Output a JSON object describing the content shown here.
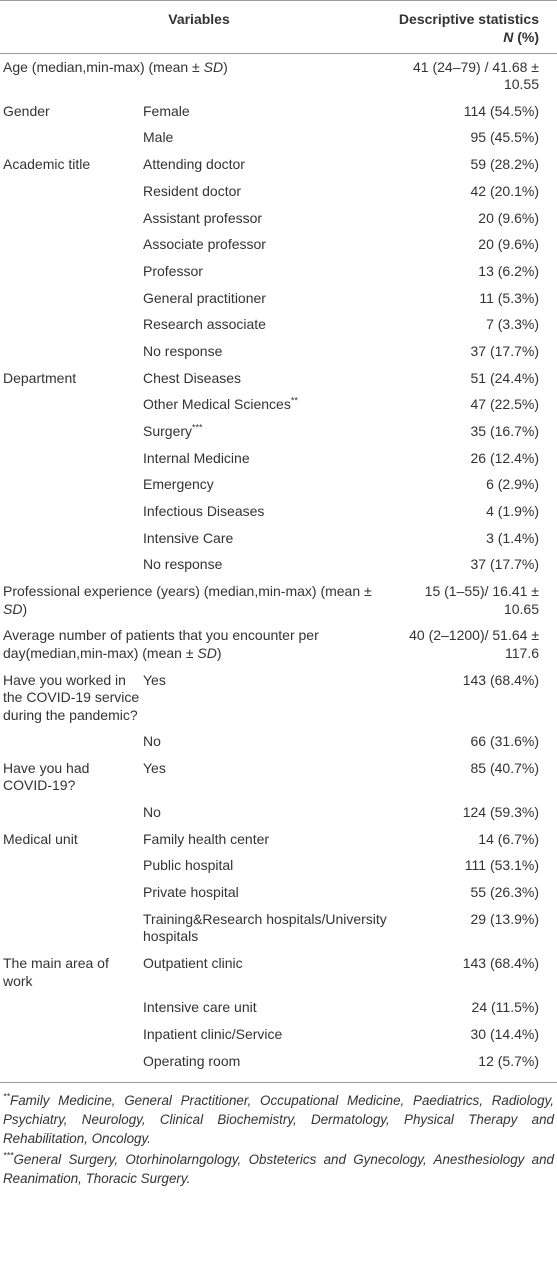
{
  "table": {
    "header": {
      "variables": "Variables",
      "statistics": [
        "Descriptive statistics ",
        {
          "i": "N"
        },
        " (%)"
      ]
    },
    "rows": [
      {
        "variable": [
          "Age (median,min-max) (mean ± ",
          {
            "i": "SD"
          },
          ")"
        ],
        "value": "41 (24–79) / 41.68 ± 10.55"
      },
      {
        "variable": "Gender",
        "category": "Female",
        "value": "114 (54.5%)"
      },
      {
        "category": "Male",
        "value": "95 (45.5%)"
      },
      {
        "variable": "Academic title",
        "category": "Attending doctor",
        "value": "59 (28.2%)"
      },
      {
        "category": "Resident doctor",
        "value": "42 (20.1%)"
      },
      {
        "category": "Assistant professor",
        "value": "20 (9.6%)"
      },
      {
        "category": "Associate professor",
        "value": "20 (9.6%)"
      },
      {
        "category": "Professor",
        "value": "13 (6.2%)"
      },
      {
        "category": "General practitioner",
        "value": "11 (5.3%)"
      },
      {
        "category": "Research associate",
        "value": "7 (3.3%)"
      },
      {
        "category": "No response",
        "value": "37 (17.7%)"
      },
      {
        "variable": "Department",
        "category": "Chest Diseases",
        "value": "51 (24.4%)"
      },
      {
        "category": [
          "Other Medical Sciences",
          {
            "sup": "**"
          }
        ],
        "value": "47 (22.5%)"
      },
      {
        "category": [
          "Surgery",
          {
            "sup": "***"
          }
        ],
        "value": "35 (16.7%)"
      },
      {
        "category": "Internal Medicine",
        "value": "26 (12.4%)"
      },
      {
        "category": "Emergency",
        "value": "6 (2.9%)"
      },
      {
        "category": "Infectious Diseases",
        "value": "4 (1.9%)"
      },
      {
        "category": "Intensive Care",
        "value": "3 (1.4%)"
      },
      {
        "category": "No response",
        "value": "37 (17.7%)"
      },
      {
        "variable": [
          "Professional experience (years) (median,min-max) (mean ± ",
          {
            "i": "SD"
          },
          ")"
        ],
        "value": "15 (1–55)/ 16.41 ± 10.65"
      },
      {
        "variable": [
          "Average number of patients that you encounter per day(median,min-max) (mean ± ",
          {
            "i": "SD"
          },
          ")"
        ],
        "value": "40 (2–1200)/ 51.64 ± 117.6"
      },
      {
        "variable": "Have you worked in the COVID-19 service during the pandemic?",
        "category": "Yes",
        "value": "143 (68.4%)"
      },
      {
        "category": "No",
        "value": "66 (31.6%)"
      },
      {
        "variable": "Have you had COVID-19?",
        "category": "Yes",
        "value": "85 (40.7%)"
      },
      {
        "category": "No",
        "value": "124 (59.3%)"
      },
      {
        "variable": "Medical unit",
        "category": "Family health center",
        "value": "14 (6.7%)"
      },
      {
        "category": "Public hospital",
        "value": "111 (53.1%)"
      },
      {
        "category": "Private hospital",
        "value": "55 (26.3%)"
      },
      {
        "category": "Training&Research hospitals/University hospitals",
        "value": "29 (13.9%)"
      },
      {
        "variable": "The main area of work",
        "category": "Outpatient clinic",
        "value": "143 (68.4%)"
      },
      {
        "category": "Intensive care unit",
        "value": "24 (11.5%)"
      },
      {
        "category": "Inpatient clinic/Service",
        "value": "30 (14.4%)"
      },
      {
        "category": "Operating room",
        "value": "12 (5.7%)"
      }
    ],
    "footnotes": [
      {
        "mark": "**",
        "text": "Family Medicine, General Practitioner, Occupational Medicine, Paediatrics, Radiology, Psychiatry, Neurology, Clinical Biochemistry, Dermatology, Physical Therapy and Rehabilitation, Oncology."
      },
      {
        "mark": "***",
        "text": "General Surgery, Otorhinolarngology, Obsteterics and Gynecology, Anesthesiology and Reanimation, Thoracic Surgery."
      }
    ]
  }
}
